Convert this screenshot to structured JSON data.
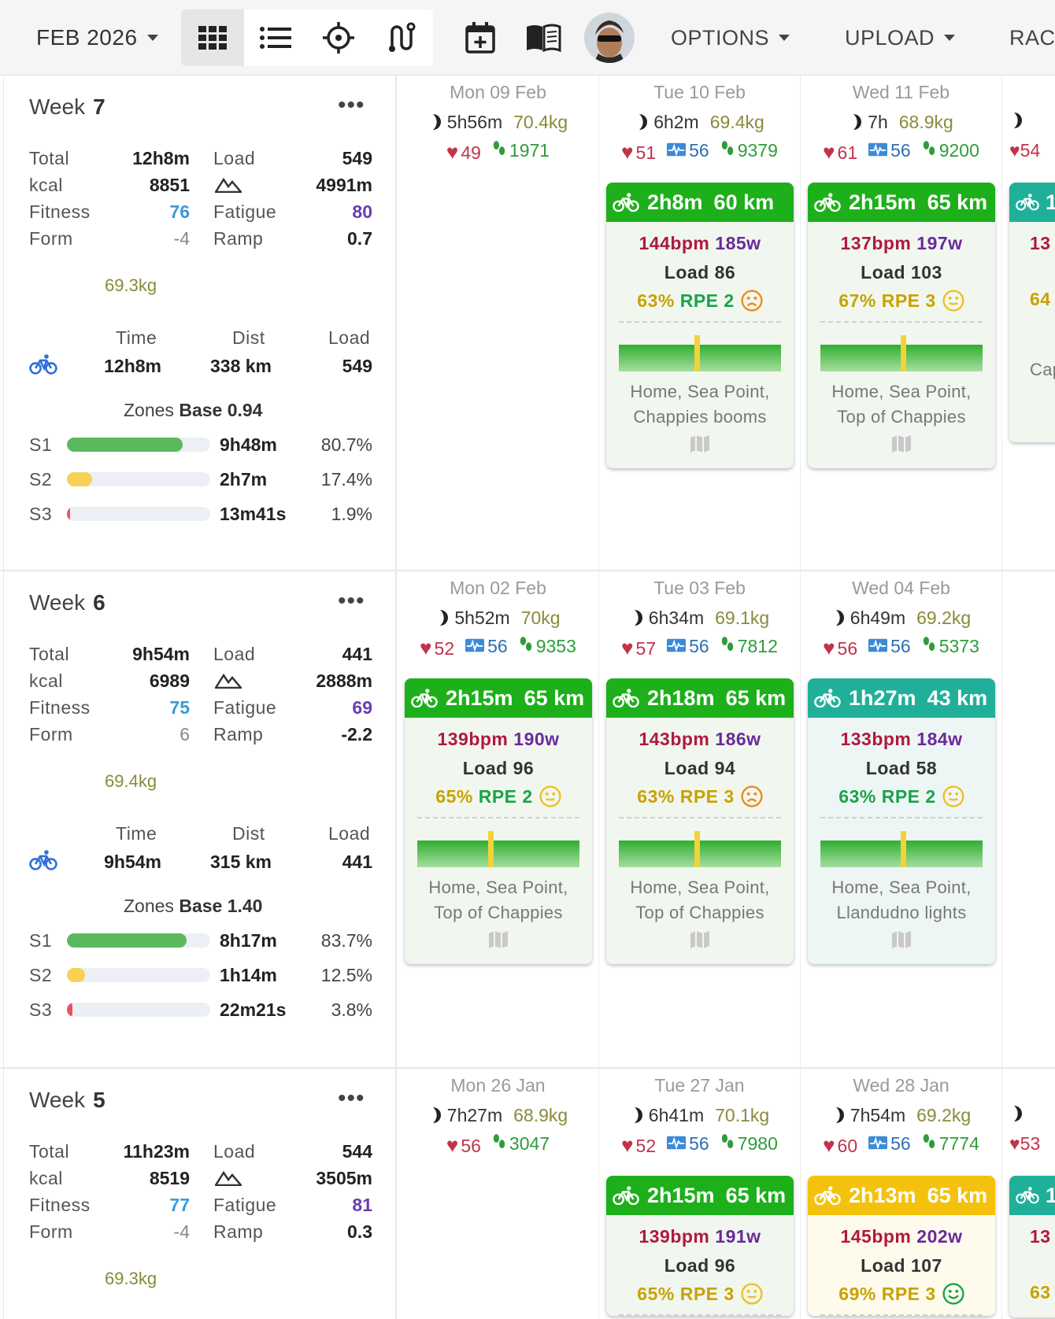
{
  "toolbar": {
    "month": "FEB 2026",
    "options": "OPTIONS",
    "upload": "UPLOAD",
    "races": "RAC",
    "icons": [
      "grid-icon",
      "list-icon",
      "crosshair-icon",
      "route-icon",
      "calendar-add-icon",
      "book-icon"
    ]
  },
  "weeks": [
    {
      "label": "Week",
      "num": "7",
      "total": "12h8m",
      "load": "549",
      "kcal": "8851",
      "elev": "4991m",
      "fitness": "76",
      "fatigue": "80",
      "form": "-4",
      "ramp": "0.7",
      "weight": "69.3kg",
      "time_h": "Time",
      "dist_h": "Dist",
      "load_h": "Load",
      "time": "12h8m",
      "dist": "338 km",
      "sportload": "549",
      "zones_label": "Zones",
      "zones_base": "Base 0.94",
      "zones": [
        {
          "name": "S1",
          "time": "9h48m",
          "pct": "80.7%",
          "frac": 0.807,
          "color": "#5cb85c"
        },
        {
          "name": "S2",
          "time": "2h7m",
          "pct": "17.4%",
          "frac": 0.174,
          "color": "#f7d054"
        },
        {
          "name": "S3",
          "time": "13m41s",
          "pct": "1.9%",
          "frac": 0.019,
          "color": "#e8536a"
        }
      ],
      "days": [
        {
          "date": "Mon 09 Feb",
          "sleep": "5h56m",
          "weight": "70.4kg",
          "hr": "49",
          "hrv": "",
          "steps": "1971"
        },
        {
          "date": "Tue 10 Feb",
          "sleep": "6h2m",
          "weight": "69.4kg",
          "hr": "51",
          "hrv": "56",
          "steps": "9379",
          "card": {
            "style": "green",
            "duration": "2h8m",
            "distance": "60 km",
            "bpm": "144bpm",
            "watts": "185w",
            "load": "Load 86",
            "pct": "63%",
            "rpe": "RPE 2",
            "pct_color": "#c8a200",
            "rpe_color": "#1aa34a",
            "face": "sad",
            "route1": "Home, Sea Point,",
            "route2": "Chappies booms"
          }
        },
        {
          "date": "Wed 11 Feb",
          "sleep": "7h",
          "weight": "68.9kg",
          "hr": "61",
          "hrv": "56",
          "steps": "9200",
          "card": {
            "style": "green",
            "duration": "2h15m",
            "distance": "65 km",
            "bpm": "137bpm",
            "watts": "197w",
            "load": "Load 103",
            "pct": "67%",
            "rpe": "RPE 3",
            "pct_color": "#c8a200",
            "rpe_color": "#c8a200",
            "face": "neutral",
            "route1": "Home, Sea Point,",
            "route2": "Top of Chappies"
          }
        }
      ],
      "edge": {
        "hr": "54",
        "card_text": "1",
        "num": "13",
        "pct": "64",
        "route": "Cap"
      }
    },
    {
      "label": "Week",
      "num": "6",
      "total": "9h54m",
      "load": "441",
      "kcal": "6989",
      "elev": "2888m",
      "fitness": "75",
      "fatigue": "69",
      "form": "6",
      "ramp": "-2.2",
      "weight": "69.4kg",
      "time_h": "Time",
      "dist_h": "Dist",
      "load_h": "Load",
      "time": "9h54m",
      "dist": "315 km",
      "sportload": "441",
      "zones_label": "Zones",
      "zones_base": "Base 1.40",
      "zones": [
        {
          "name": "S1",
          "time": "8h17m",
          "pct": "83.7%",
          "frac": 0.837,
          "color": "#5cb85c"
        },
        {
          "name": "S2",
          "time": "1h14m",
          "pct": "12.5%",
          "frac": 0.125,
          "color": "#f7d054"
        },
        {
          "name": "S3",
          "time": "22m21s",
          "pct": "3.8%",
          "frac": 0.038,
          "color": "#e8536a"
        }
      ],
      "days": [
        {
          "date": "Mon 02 Feb",
          "sleep": "5h52m",
          "weight": "70kg",
          "hr": "52",
          "hrv": "56",
          "steps": "9353",
          "card": {
            "style": "green",
            "duration": "2h15m",
            "distance": "65 km",
            "bpm": "139bpm",
            "watts": "190w",
            "load": "Load 96",
            "pct": "65%",
            "rpe": "RPE 2",
            "pct_color": "#c8a200",
            "rpe_color": "#1aa34a",
            "face": "neutral",
            "route1": "Home, Sea Point,",
            "route2": "Top of Chappies"
          }
        },
        {
          "date": "Tue 03 Feb",
          "sleep": "6h34m",
          "weight": "69.1kg",
          "hr": "57",
          "hrv": "56",
          "steps": "7812",
          "card": {
            "style": "green",
            "duration": "2h18m",
            "distance": "65 km",
            "bpm": "143bpm",
            "watts": "186w",
            "load": "Load 94",
            "pct": "63%",
            "rpe": "RPE 3",
            "pct_color": "#c8a200",
            "rpe_color": "#c8a200",
            "face": "sad",
            "route1": "Home, Sea Point,",
            "route2": "Top of Chappies"
          }
        },
        {
          "date": "Wed 04 Feb",
          "sleep": "6h49m",
          "weight": "69.2kg",
          "hr": "56",
          "hrv": "56",
          "steps": "5373",
          "card": {
            "style": "teal",
            "duration": "1h27m",
            "distance": "43 km",
            "bpm": "133bpm",
            "watts": "184w",
            "load": "Load 58",
            "pct": "63%",
            "rpe": "RPE 2",
            "pct_color": "#1aa34a",
            "rpe_color": "#1aa34a",
            "face": "neutral",
            "route1": "Home, Sea Point,",
            "route2": "Llandudno lights"
          }
        }
      ],
      "edge": {
        "hr": "",
        "card_text": "",
        "num": "",
        "pct": "",
        "route": ""
      }
    },
    {
      "label": "Week",
      "num": "5",
      "total": "11h23m",
      "load": "544",
      "kcal": "8519",
      "elev": "3505m",
      "fitness": "77",
      "fatigue": "81",
      "form": "-4",
      "ramp": "0.3",
      "weight": "69.3kg",
      "days": [
        {
          "date": "Mon 26 Jan",
          "sleep": "7h27m",
          "weight": "68.9kg",
          "hr": "56",
          "hrv": "",
          "steps": "3047"
        },
        {
          "date": "Tue 27 Jan",
          "sleep": "6h41m",
          "weight": "70.1kg",
          "hr": "52",
          "hrv": "56",
          "steps": "7980",
          "card": {
            "style": "green",
            "duration": "2h15m",
            "distance": "65 km",
            "bpm": "139bpm",
            "watts": "191w",
            "load": "Load 96",
            "pct": "65%",
            "rpe": "RPE 3",
            "pct_color": "#c8a200",
            "rpe_color": "#c8a200",
            "face": "neutral"
          }
        },
        {
          "date": "Wed 28 Jan",
          "sleep": "7h54m",
          "weight": "69.2kg",
          "hr": "60",
          "hrv": "56",
          "steps": "7774",
          "card": {
            "style": "yellow",
            "duration": "2h13m",
            "distance": "65 km",
            "bpm": "145bpm",
            "watts": "202w",
            "load": "Load 107",
            "pct": "69%",
            "rpe": "RPE 3",
            "pct_color": "#c8a200",
            "rpe_color": "#c8a200",
            "face": "happy"
          }
        }
      ],
      "edge": {
        "hr": "53",
        "card_text": "1",
        "num": "13",
        "pct": "63",
        "route": ""
      }
    }
  ],
  "labels": {
    "total": "Total",
    "load": "Load",
    "kcal": "kcal",
    "fitness": "Fitness",
    "fatigue": "Fatigue",
    "form": "Form",
    "ramp": "Ramp"
  }
}
